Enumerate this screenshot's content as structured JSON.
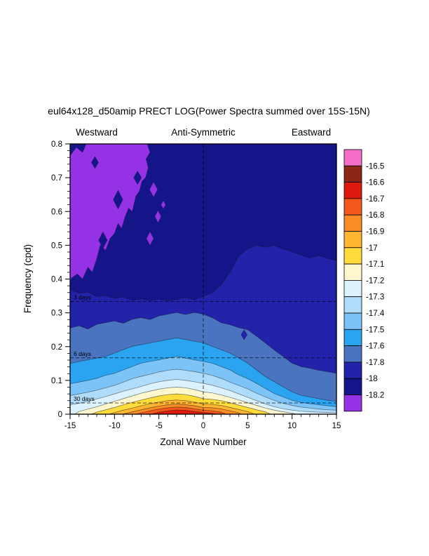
{
  "title": "eul64x128_d50amip PRECT LOG(Power Spectra summed over 15S-15N)",
  "direction_labels": {
    "left": "Westward",
    "center": "Anti-Symmetric",
    "right": "Eastward"
  },
  "axes": {
    "xlabel": "Zonal Wave Number",
    "ylabel": "Frequency (cpd)",
    "x_tick_labels": [
      "-15",
      "-10",
      "-5",
      "0",
      "5",
      "10",
      "15"
    ],
    "x_tick_values": [
      -15,
      -10,
      -5,
      0,
      5,
      10,
      15
    ],
    "y_tick_labels": [
      "0",
      "0.1",
      "0.2",
      "0.3",
      "0.4",
      "0.5",
      "0.6",
      "0.7",
      "0.8"
    ],
    "y_tick_values": [
      0,
      0.1,
      0.2,
      0.3,
      0.4,
      0.5,
      0.6,
      0.7,
      0.8
    ]
  },
  "reference_lines": [
    {
      "label": "3 days",
      "frequency": 0.3333
    },
    {
      "label": "6 days",
      "frequency": 0.1667
    },
    {
      "label": "30 days",
      "frequency": 0.0333
    }
  ],
  "colorbar": {
    "labels": [
      "-16.5",
      "-16.6",
      "-16.7",
      "-16.8",
      "-16.9",
      "-17",
      "-17.1",
      "-17.2",
      "-17.3",
      "-17.4",
      "-17.5",
      "-17.6",
      "-17.8",
      "-18",
      "-18.2"
    ],
    "colors_top_to_bottom": [
      "#F46EC8",
      "#8C2616",
      "#DE1A10",
      "#F4581C",
      "#FA8C26",
      "#FFB432",
      "#FFDC3C",
      "#FFF8CE",
      "#DCF2FE",
      "#AEDCFA",
      "#7CC4F8",
      "#2AA4F0",
      "#4A74C0",
      "#2222AA",
      "#15158A",
      "#9632E6"
    ]
  },
  "chart_data": {
    "type": "heatmap",
    "title": "eul64x128_d50amip PRECT LOG(Power Spectra summed over 15S-15N)",
    "subtitle_left": "Westward",
    "subtitle_center": "Anti-Symmetric",
    "subtitle_right": "Eastward",
    "xlabel": "Zonal Wave Number",
    "ylabel": "Frequency (cpd)",
    "xlim": [
      -15,
      15
    ],
    "ylim": [
      0,
      0.8
    ],
    "x_ticks": [
      -15,
      -10,
      -5,
      0,
      5,
      10,
      15
    ],
    "y_ticks": [
      0,
      0.1,
      0.2,
      0.3,
      0.4,
      0.5,
      0.6,
      0.7,
      0.8
    ],
    "grid": false,
    "legend_position": "right",
    "contour_levels": [
      -18.2,
      -18,
      -17.8,
      -17.6,
      -17.5,
      -17.4,
      -17.3,
      -17.2,
      -17.1,
      -17,
      -16.9,
      -16.8,
      -16.7,
      -16.6,
      -16.5
    ],
    "colors_low_to_high": [
      "#9632E6",
      "#15158A",
      "#2222AA",
      "#4A74C0",
      "#2AA4F0",
      "#7CC4F8",
      "#AEDCFA",
      "#DCF2FE",
      "#FFF8CE",
      "#FFDC3C",
      "#FFB432",
      "#FA8C26",
      "#F4581C",
      "#DE1A10",
      "#8C2616",
      "#F46EC8"
    ],
    "reference_lines": [
      {
        "label": "3 days",
        "frequency": 0.3333
      },
      {
        "label": "6 days",
        "frequency": 0.1667
      },
      {
        "label": "30 days",
        "frequency": 0.0333
      },
      {
        "label": "zonal wavenumber 0",
        "x": 0
      }
    ],
    "features": [
      {
        "region": "westward wavenumbers -15 to -6, frequencies 0.4 to 0.8 cpd",
        "value": "below -18.2 (minimum, purple patch with small navy holes and nearby purple islands)"
      },
      {
        "region": "remaining upper half of plot",
        "value": "-18.2 to -18 (dark navy background)"
      },
      {
        "region": "band between about 0.25 cpd and 0.35 cpd (west) rising to 0.5 cpd (east)",
        "value": "-18 to -17.8"
      },
      {
        "region": "nested bands below about 0.3 cpd spanning all wavenumbers",
        "value": "-17.8 rising through -17.6, -17.5, -17.4, -17.3, -17.2, -17.1, -17, -16.9, -16.8, -16.7 toward zero frequency"
      },
      {
        "region": "maximum near wavenumber -2, frequency about 0.02 cpd",
        "value": "red core, about -16.7 to -16.6"
      },
      {
        "region": "small isolated dark spot near wavenumber 4.6, frequency 0.235",
        "value": "about -18"
      }
    ]
  }
}
